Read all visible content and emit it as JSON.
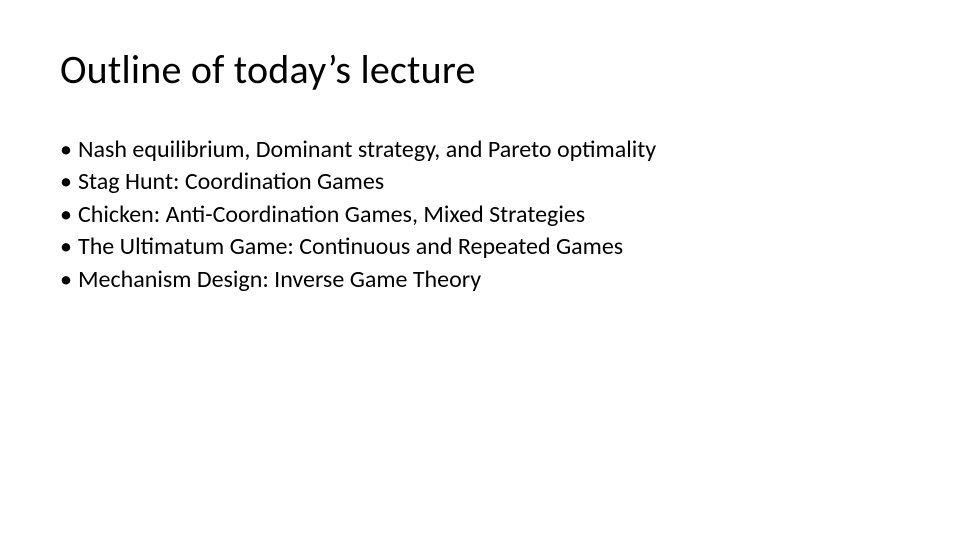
{
  "slide": {
    "title": "Outline of today’s lecture",
    "bullet_marker": "•",
    "bullets": [
      "Nash equilibrium, Dominant strategy, and Pareto optimality",
      "Stag Hunt: Coordination Games",
      "Chicken: Anti-Coordination Games, Mixed Strategies",
      "The Ultimatum Game: Continuous and Repeated Games",
      "Mechanism Design: Inverse Game Theory"
    ],
    "colors": {
      "background": "#ffffff",
      "text": "#000000"
    },
    "typography": {
      "title_fontsize_pt": 30,
      "body_fontsize_pt": 18,
      "font_family": "Calibri"
    }
  }
}
